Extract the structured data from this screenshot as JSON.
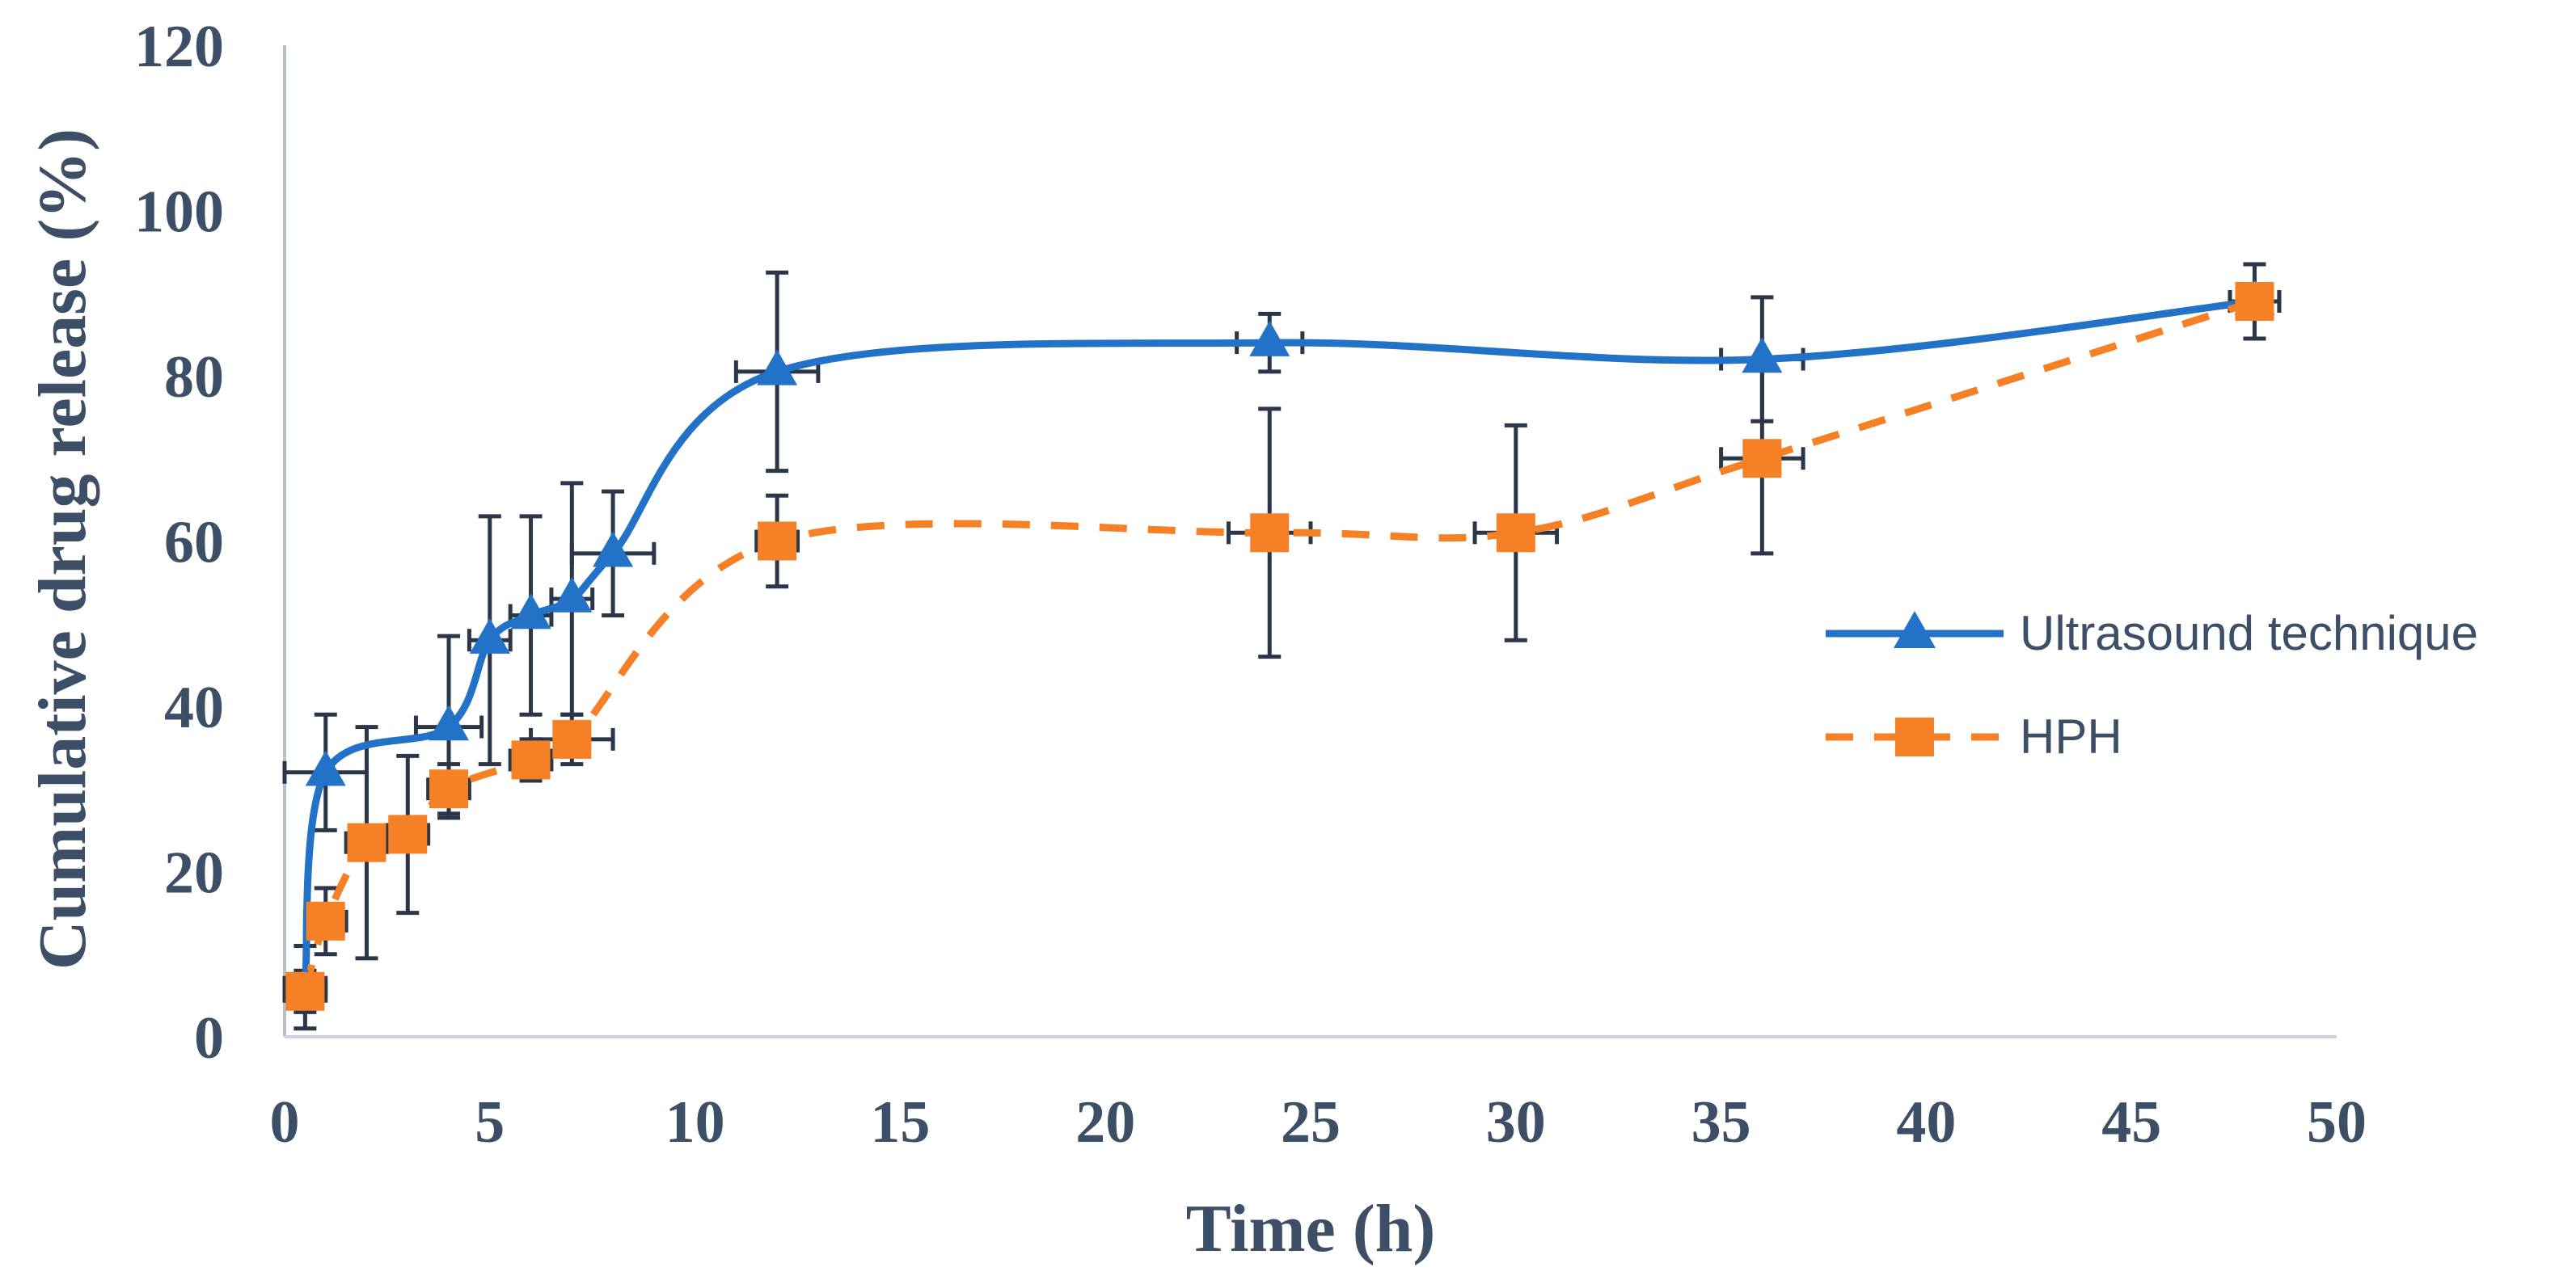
{
  "chart_data": {
    "type": "line",
    "title": "",
    "xlabel": "Time (h)",
    "ylabel": "Cumulative drug release (%)",
    "xlim": [
      0,
      50
    ],
    "ylim": [
      0,
      120
    ],
    "xticks": [
      0,
      5,
      10,
      15,
      20,
      25,
      30,
      35,
      40,
      45,
      50
    ],
    "yticks": [
      0,
      20,
      40,
      60,
      80,
      100,
      120
    ],
    "grid": false,
    "legend": "right",
    "series": [
      {
        "name": "Ultrasound technique",
        "color": "#2272c8",
        "line_style": "solid",
        "marker": "triangle",
        "x": [
          0.5,
          1,
          4,
          5,
          6,
          7,
          8,
          12,
          24,
          36,
          48
        ],
        "y": [
          6,
          32,
          37.5,
          48,
          51,
          53,
          58.5,
          80.5,
          84,
          82,
          89
        ],
        "y_err": [
          5,
          7,
          11,
          15,
          12,
          14,
          7.5,
          12,
          3.5,
          7.5,
          4.5
        ],
        "x_err": [
          0.5,
          1,
          0.8,
          0.5,
          0.5,
          0.5,
          1,
          1,
          0.8,
          1,
          0.6
        ]
      },
      {
        "name": "HPH",
        "color": "#f58025",
        "line_style": "dashed",
        "marker": "square",
        "x": [
          0.5,
          1,
          2,
          3,
          4,
          6,
          7,
          12,
          24,
          30,
          36,
          48
        ],
        "y": [
          5.5,
          14,
          23.5,
          24.5,
          30,
          33.5,
          36,
          60,
          61,
          61,
          70,
          89
        ],
        "y_err": [
          2.5,
          4,
          14,
          9.5,
          3,
          2.5,
          3,
          5.5,
          15,
          13,
          11.5,
          4.5
        ],
        "x_err": [
          0.5,
          0.5,
          0.5,
          0.5,
          0.5,
          0.5,
          1,
          0.5,
          1,
          1,
          1,
          0.6
        ]
      }
    ]
  }
}
